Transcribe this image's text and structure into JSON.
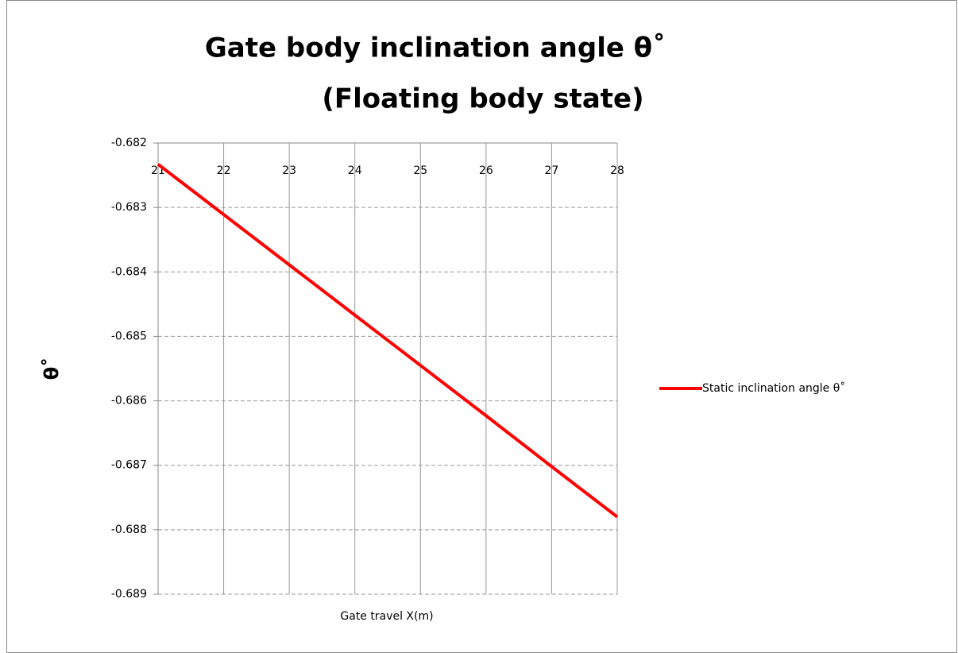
{
  "chart_data": {
    "type": "line",
    "title": "Gate body inclination angle θ˚",
    "subtitle": "(Floating body state)",
    "x_label": "Gate travel X(m)",
    "y_label": "θ˚",
    "x": [
      21,
      22,
      23,
      24,
      25,
      26,
      27,
      28
    ],
    "series": [
      {
        "name": "Static inclination angle θ˚",
        "color": "#ff0000",
        "values": [
          -0.68233,
          -0.68311,
          -0.68389,
          -0.68467,
          -0.68545,
          -0.68623,
          -0.68702,
          -0.6878
        ]
      }
    ],
    "xlim": [
      21,
      28
    ],
    "xticks": [
      21,
      22,
      23,
      24,
      25,
      26,
      27,
      28
    ],
    "ylim": [
      -0.689,
      -0.682
    ],
    "yticks": [
      -0.689,
      -0.688,
      -0.687,
      -0.686,
      -0.685,
      -0.684,
      -0.683,
      -0.682
    ],
    "grid": true,
    "legend": "right"
  }
}
